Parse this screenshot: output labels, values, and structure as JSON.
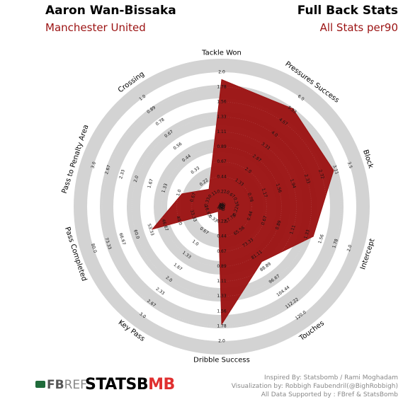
{
  "header": {
    "player": "Aaron Wan-Bissaka",
    "team": "Manchester United",
    "stats_title": "Full Back Stats",
    "stats_subtitle": "All Stats per90"
  },
  "footer": {
    "fbref_brand_a": "FB",
    "fbref_brand_b": "REF",
    "statsbomb_a": "STATSB",
    "statsbomb_b": "MB",
    "credit_line_1": "Inspired By: Statsbomb / Rami Moghadam",
    "credit_line_2": "Visualization by: Robbigh Faubendril(@BighRobbigh)",
    "credit_line_3": "All Data Supported by : FBref & StatsBomb"
  },
  "colors": {
    "fill": "#9b1212",
    "ring": "#d3d3d3",
    "title_accent": "#9b1212"
  },
  "chart_data": {
    "type": "radar",
    "series": [
      {
        "name": "",
        "values": [
          1.89,
          5.4,
          3.06,
          1.43,
          85.4,
          1.75,
          0.13,
          52.5,
          0.93,
          0.16
        ]
      }
    ],
    "axes": [
      {
        "label": "Tackle Won",
        "min": 0.0,
        "max": 2.0,
        "ticks": [
          "0.0",
          "0.22",
          "0.44",
          "0.67",
          "0.89",
          "1.11",
          "1.33",
          "1.56",
          "1.78",
          "2.0"
        ]
      },
      {
        "label": "Pressures Success",
        "min": 0.0,
        "max": 6.0,
        "ticks": [
          "0.0",
          "0.67",
          "1.33",
          "2.0",
          "2.67",
          "3.33",
          "4.0",
          "4.67",
          "5.33",
          "6.0"
        ]
      },
      {
        "label": "Block",
        "min": 0.0,
        "max": 3.5,
        "ticks": [
          "0.0",
          "0.39",
          "0.78",
          "1.17",
          "1.56",
          "1.94",
          "2.33",
          "2.72",
          "3.11",
          "3.5"
        ]
      },
      {
        "label": "Intercept",
        "min": 0.0,
        "max": 2.0,
        "ticks": [
          "0.0",
          "0.22",
          "0.44",
          "0.67",
          "0.89",
          "1.11",
          "1.33",
          "1.56",
          "1.78",
          "2.0"
        ]
      },
      {
        "label": "Touches",
        "min": 50.0,
        "max": 120.0,
        "ticks": [
          "50.0",
          "57.78",
          "65.56",
          "73.33",
          "81.11",
          "88.89",
          "96.67",
          "104.44",
          "112.22",
          "120.0"
        ]
      },
      {
        "label": "Dribble Success",
        "min": 0.0,
        "max": 2.0,
        "ticks": [
          "0.0",
          "0.22",
          "0.44",
          "0.67",
          "0.89",
          "1.11",
          "1.33",
          "1.56",
          "1.78",
          "2.0"
        ]
      },
      {
        "label": "Key Pass",
        "min": 0.0,
        "max": 3.0,
        "ticks": [
          "0.0",
          "0.33",
          "0.67",
          "1.0",
          "1.33",
          "1.67",
          "2.0",
          "2.33",
          "2.67",
          "3.0"
        ]
      },
      {
        "label": "Pass Completed",
        "min": 20.0,
        "max": 80.0,
        "ticks": [
          "20.0",
          "26.67",
          "33.33",
          "40.0",
          "46.67",
          "53.33",
          "60.0",
          "66.67",
          "73.33",
          "80.0"
        ]
      },
      {
        "label": "Pass to Penalty Area",
        "min": 0.0,
        "max": 3.0,
        "ticks": [
          "0.0",
          "0.33",
          "0.67",
          "1.0",
          "1.33",
          "1.67",
          "2.0",
          "2.33",
          "2.67",
          "3.0"
        ]
      },
      {
        "label": "Crossing",
        "min": 0.0,
        "max": 1.0,
        "ticks": [
          "0.0",
          "0.11",
          "0.22",
          "0.33",
          "0.44",
          "0.56",
          "0.67",
          "0.78",
          "0.89",
          "1.0"
        ]
      }
    ]
  }
}
